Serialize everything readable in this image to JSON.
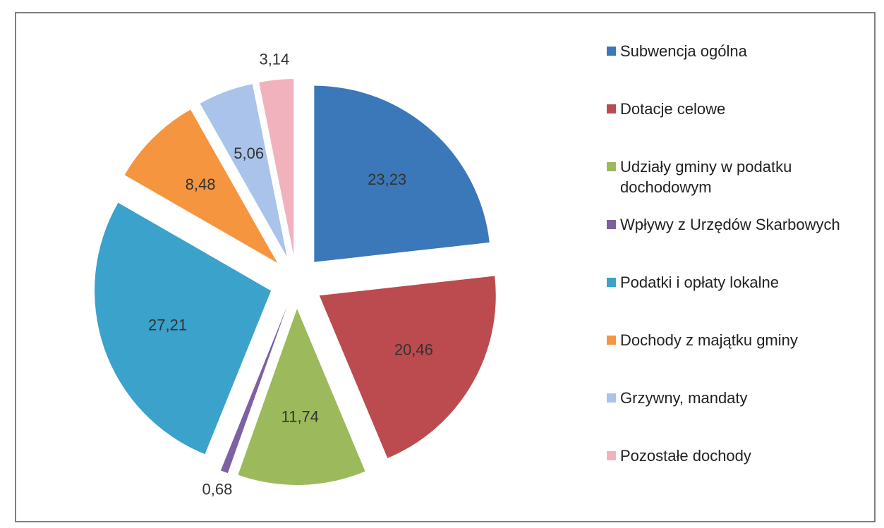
{
  "chart_data": {
    "type": "pie",
    "categories": [
      "Subwencja ogólna",
      "Dotacje celowe",
      "Udziały gminy w podatku dochodowym",
      "Wpływy z Urzędów Skarbowych",
      "Podatki i opłaty lokalne",
      "Dochody z majątku gminy",
      "Grzywny, mandaty",
      "Pozostałe dochody"
    ],
    "values": [
      23.23,
      20.46,
      11.74,
      0.68,
      27.21,
      8.48,
      5.06,
      3.14
    ],
    "value_labels": [
      "23,23",
      "20,46",
      "11,74",
      "0,68",
      "27,21",
      "8,48",
      "5,06",
      "3,14"
    ],
    "colors": [
      "#3b78b9",
      "#bb4b4e",
      "#9cba5b",
      "#7d61a2",
      "#3aa2cb",
      "#f6953f",
      "#a9c3ea",
      "#f1b2be"
    ],
    "legend": "right"
  }
}
